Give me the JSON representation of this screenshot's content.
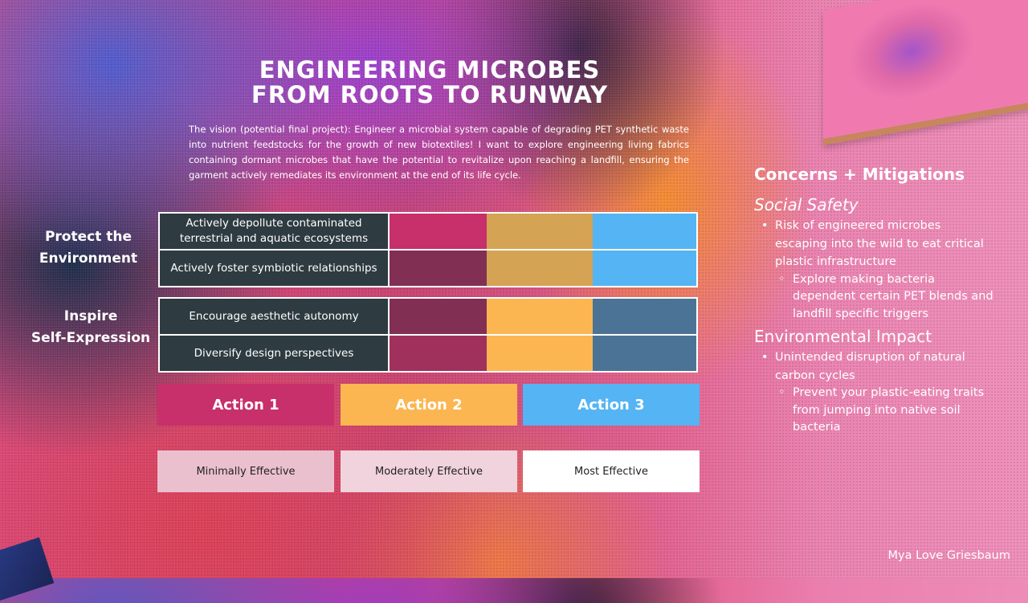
{
  "title_lines": [
    "Engineering Microbes",
    "From Roots to Runway"
  ],
  "vision": "The vision (potential final project): Engineer a microbial system capable of degrading PET synthetic waste into nutrient feedstocks for the growth of new biotextiles! I want to explore engineering living fabrics containing dormant microbes that have the potential to revitalize upon reaching a landfill, ensuring the garment actively remediates its environment at the end of its life cycle.",
  "goals": [
    {
      "label_lines": [
        "Protect the",
        "Environment"
      ],
      "rows": [
        {
          "label": "Actively depollute contaminated terrestrial and aquatic ecosystems",
          "colors": [
            "#c7306a",
            "#d4a354",
            "#55b4f3"
          ]
        },
        {
          "label": "Actively foster symbiotic relationships",
          "colors": [
            "#822f54",
            "#d4a354",
            "#55b4f3"
          ]
        }
      ]
    },
    {
      "label_lines": [
        "Inspire",
        "Self-Expression"
      ],
      "rows": [
        {
          "label": "Encourage aesthetic autonomy",
          "colors": [
            "#822f54",
            "#fbb652",
            "#4b7396"
          ]
        },
        {
          "label": "Diversify design perspectives",
          "colors": [
            "#a0315c",
            "#fbb652",
            "#4b7396"
          ]
        }
      ]
    }
  ],
  "actions": [
    {
      "label": "Action 1",
      "color": "#c7306a"
    },
    {
      "label": "Action 2",
      "color": "#fbb652"
    },
    {
      "label": "Action 3",
      "color": "#55b4f3"
    }
  ],
  "effectiveness": [
    {
      "label": "Minimally Effective",
      "color": "#ebc0ce"
    },
    {
      "label": "Moderately Effective",
      "color": "#f1d3dd"
    },
    {
      "label": "Most Effective",
      "color": "#ffffff"
    }
  ],
  "concerns": {
    "heading": "Concerns + Mitigations",
    "sections": [
      {
        "title": "Social Safety",
        "bullet": "Risk of engineered microbes escaping into the wild to eat critical plastic infrastructure",
        "sub": "Explore making bacteria dependent certain PET blends and landfill specific triggers"
      },
      {
        "title": "Environmental Impact",
        "bullet": "Unintended disruption of natural carbon cycles",
        "sub": "Prevent your plastic-eating traits from jumping into native soil bacteria"
      }
    ]
  },
  "author": "Mya Love Griesbaum"
}
